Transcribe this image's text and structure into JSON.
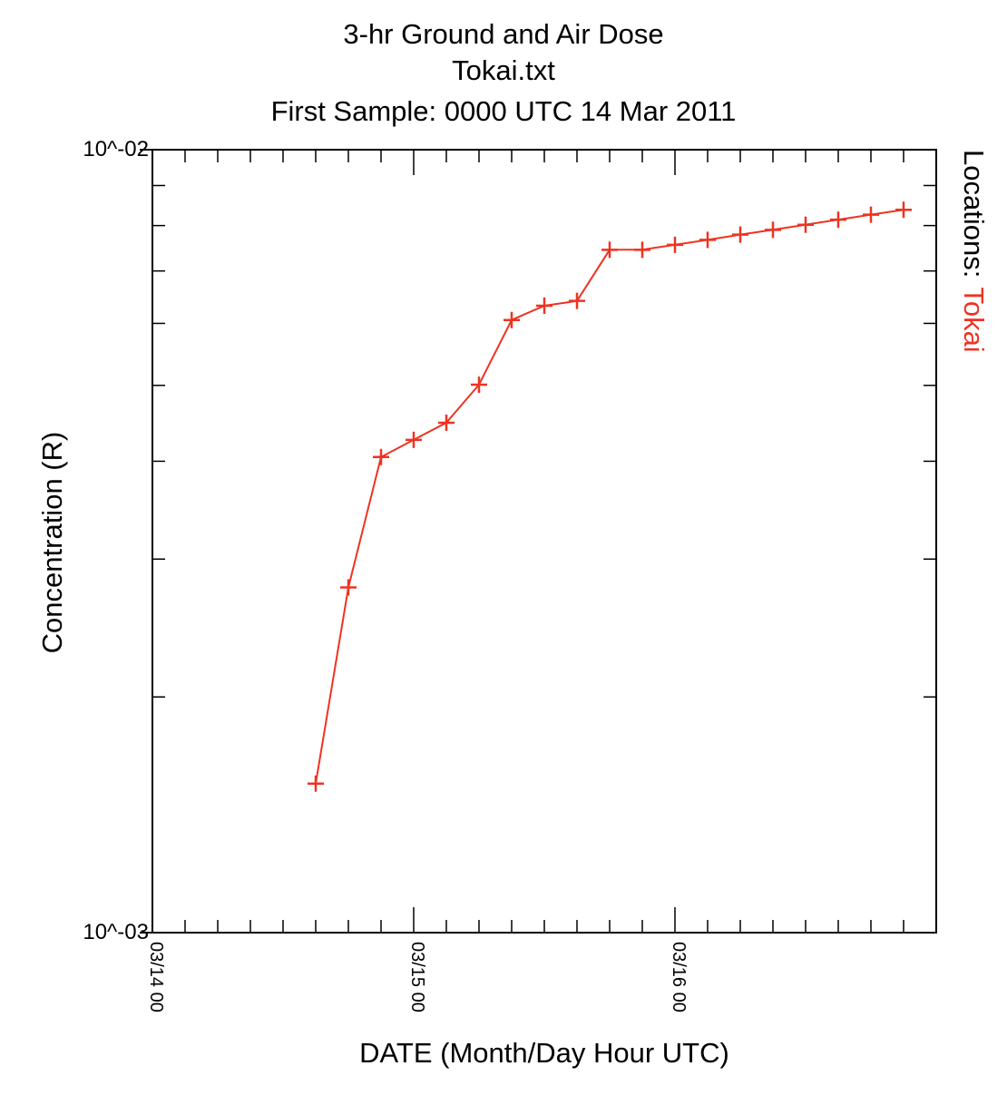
{
  "chart_data": {
    "type": "line",
    "title_lines": [
      "3-hr Ground and Air Dose",
      "Tokai.txt",
      "First Sample: 0000 UTC 14 Mar 2011"
    ],
    "xlabel": "DATE (Month/Day Hour UTC)",
    "ylabel": "Concentration (R)",
    "y_scale": "log",
    "ylim": [
      0.001,
      0.01
    ],
    "y_tick_labels": [
      "10^-02",
      "10^-03"
    ],
    "x_tick_labels": [
      "03/14 00",
      "03/15 00",
      "03/16 00"
    ],
    "x_tick_times": [
      "2011-03-14 00:00",
      "2011-03-15 00:00",
      "2011-03-16 00:00"
    ],
    "xlim": [
      "2011-03-14 00:00",
      "2011-03-17 00:00"
    ],
    "legend": {
      "label": "Locations:",
      "placement": "right, vertical"
    },
    "series": [
      {
        "name": "Tokai",
        "color": "#ee3322",
        "marker": "plus",
        "x": [
          "2011-03-14 15:00",
          "2011-03-14 18:00",
          "2011-03-14 21:00",
          "2011-03-15 00:00",
          "2011-03-15 03:00",
          "2011-03-15 06:00",
          "2011-03-15 09:00",
          "2011-03-15 12:00",
          "2011-03-15 15:00",
          "2011-03-15 18:00",
          "2011-03-15 21:00",
          "2011-03-16 00:00",
          "2011-03-16 03:00",
          "2011-03-16 06:00",
          "2011-03-16 09:00",
          "2011-03-16 12:00",
          "2011-03-16 15:00",
          "2011-03-16 18:00",
          "2011-03-16 21:00"
        ],
        "values": [
          0.00155,
          0.00276,
          0.00405,
          0.00426,
          0.00448,
          0.00501,
          0.00606,
          0.00632,
          0.00641,
          0.00745,
          0.00745,
          0.00756,
          0.00767,
          0.00779,
          0.0079,
          0.00802,
          0.00814,
          0.00826,
          0.00838
        ]
      }
    ]
  }
}
